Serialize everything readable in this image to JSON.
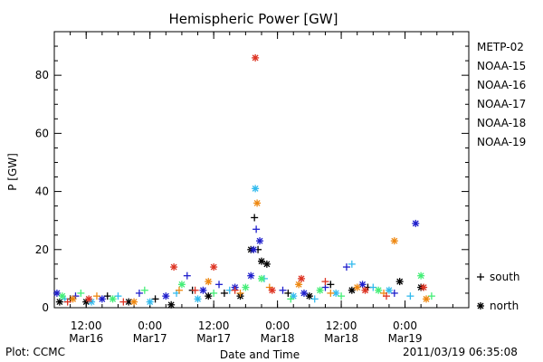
{
  "chart_data": {
    "type": "scatter",
    "title": "Hemispheric Power [GW]",
    "ylabel": "P [GW]",
    "xlabel": "Date and Time",
    "ylim": [
      0,
      95
    ],
    "yticks": [
      0,
      20,
      40,
      60,
      80
    ],
    "xlim": [
      "2011-03-16 06:00",
      "2011-03-19 12:00"
    ],
    "xticks": [
      {
        "time": "12:00",
        "date": "Mar16",
        "t": "2011-03-16 12:00"
      },
      {
        "time": "0:00",
        "date": "Mar17",
        "t": "2011-03-17 00:00"
      },
      {
        "time": "12:00",
        "date": "Mar17",
        "t": "2011-03-17 12:00"
      },
      {
        "time": "0:00",
        "date": "Mar18",
        "t": "2011-03-18 00:00"
      },
      {
        "time": "12:00",
        "date": "Mar18",
        "t": "2011-03-18 12:00"
      },
      {
        "time": "0:00",
        "date": "Mar19",
        "t": "2011-03-19 00:00"
      }
    ],
    "legend_position": "right",
    "marker_legend": [
      {
        "symbol": "+",
        "label": "south"
      },
      {
        "symbol": "*",
        "label": "north"
      }
    ],
    "series": [
      {
        "name": "METP-02",
        "color": "#000000",
        "points": [
          [
            "2011-03-16 07:00",
            2,
            "*"
          ],
          [
            "2011-03-16 09:00",
            3,
            "+"
          ],
          [
            "2011-03-16 12:00",
            2,
            "*"
          ],
          [
            "2011-03-16 16:00",
            4,
            "+"
          ],
          [
            "2011-03-16 20:00",
            2,
            "*"
          ],
          [
            "2011-03-17 01:00",
            3,
            "+"
          ],
          [
            "2011-03-17 04:00",
            1,
            "*"
          ],
          [
            "2011-03-17 08:00",
            6,
            "+"
          ],
          [
            "2011-03-17 11:00",
            4,
            "*"
          ],
          [
            "2011-03-17 14:00",
            5,
            "+"
          ],
          [
            "2011-03-17 17:00",
            4,
            "*"
          ],
          [
            "2011-03-17 19:00",
            20,
            "*"
          ],
          [
            "2011-03-17 19:40",
            31,
            "+"
          ],
          [
            "2011-03-17 20:20",
            20,
            "+"
          ],
          [
            "2011-03-17 21:00",
            16,
            "*"
          ],
          [
            "2011-03-17 22:00",
            15,
            "*"
          ],
          [
            "2011-03-18 02:00",
            5,
            "+"
          ],
          [
            "2011-03-18 06:00",
            4,
            "*"
          ],
          [
            "2011-03-18 10:00",
            8,
            "+"
          ],
          [
            "2011-03-18 14:00",
            6,
            "*"
          ],
          [
            "2011-03-18 17:00",
            7,
            "+"
          ],
          [
            "2011-03-18 23:00",
            9,
            "*"
          ],
          [
            "2011-03-19 03:00",
            7,
            "*"
          ]
        ]
      },
      {
        "name": "NOAA-15",
        "color": "#1f1fcc",
        "points": [
          [
            "2011-03-16 06:30",
            5,
            "*"
          ],
          [
            "2011-03-16 10:00",
            4,
            "+"
          ],
          [
            "2011-03-16 15:00",
            3,
            "*"
          ],
          [
            "2011-03-16 22:00",
            5,
            "+"
          ],
          [
            "2011-03-17 03:00",
            4,
            "*"
          ],
          [
            "2011-03-17 07:00",
            11,
            "+"
          ],
          [
            "2011-03-17 10:00",
            6,
            "*"
          ],
          [
            "2011-03-17 13:00",
            8,
            "+"
          ],
          [
            "2011-03-17 16:00",
            7,
            "*"
          ],
          [
            "2011-03-17 19:00",
            11,
            "*"
          ],
          [
            "2011-03-17 19:30",
            20,
            "*"
          ],
          [
            "2011-03-17 20:00",
            27,
            "+"
          ],
          [
            "2011-03-17 20:40",
            23,
            "*"
          ],
          [
            "2011-03-18 01:00",
            6,
            "+"
          ],
          [
            "2011-03-18 05:00",
            5,
            "*"
          ],
          [
            "2011-03-18 09:00",
            7,
            "+"
          ],
          [
            "2011-03-18 13:00",
            14,
            "+"
          ],
          [
            "2011-03-18 16:00",
            8,
            "*"
          ],
          [
            "2011-03-18 22:00",
            5,
            "+"
          ],
          [
            "2011-03-19 02:00",
            29,
            "*"
          ]
        ]
      },
      {
        "name": "NOAA-16",
        "color": "#33bbee",
        "points": [
          [
            "2011-03-16 08:00",
            3,
            "+"
          ],
          [
            "2011-03-16 13:00",
            2,
            "*"
          ],
          [
            "2011-03-16 18:00",
            4,
            "+"
          ],
          [
            "2011-03-17 00:00",
            2,
            "*"
          ],
          [
            "2011-03-17 05:00",
            5,
            "+"
          ],
          [
            "2011-03-17 09:00",
            3,
            "*"
          ],
          [
            "2011-03-17 15:00",
            6,
            "+"
          ],
          [
            "2011-03-17 19:50",
            41,
            "*"
          ],
          [
            "2011-03-17 21:30",
            10,
            "+"
          ],
          [
            "2011-03-18 03:00",
            4,
            "*"
          ],
          [
            "2011-03-18 07:00",
            3,
            "+"
          ],
          [
            "2011-03-18 11:00",
            5,
            "*"
          ],
          [
            "2011-03-18 14:00",
            15,
            "+"
          ],
          [
            "2011-03-18 18:00",
            7,
            "+"
          ],
          [
            "2011-03-18 21:00",
            6,
            "*"
          ],
          [
            "2011-03-19 01:00",
            4,
            "+"
          ]
        ]
      },
      {
        "name": "NOAA-17",
        "color": "#44ee77",
        "points": [
          [
            "2011-03-16 07:30",
            4,
            "*"
          ],
          [
            "2011-03-16 11:00",
            5,
            "+"
          ],
          [
            "2011-03-16 17:00",
            3,
            "*"
          ],
          [
            "2011-03-16 23:00",
            6,
            "+"
          ],
          [
            "2011-03-17 06:00",
            8,
            "*"
          ],
          [
            "2011-03-17 12:00",
            5,
            "+"
          ],
          [
            "2011-03-17 18:00",
            7,
            "*"
          ],
          [
            "2011-03-17 21:00",
            10,
            "*"
          ],
          [
            "2011-03-18 02:30",
            3,
            "+"
          ],
          [
            "2011-03-18 08:00",
            6,
            "*"
          ],
          [
            "2011-03-18 12:00",
            4,
            "+"
          ],
          [
            "2011-03-18 19:00",
            6,
            "*"
          ],
          [
            "2011-03-19 03:00",
            11,
            "*"
          ],
          [
            "2011-03-19 05:00",
            4,
            "+"
          ]
        ]
      },
      {
        "name": "NOAA-18",
        "color": "#ee8811",
        "points": [
          [
            "2011-03-16 09:30",
            3,
            "*"
          ],
          [
            "2011-03-16 14:00",
            4,
            "+"
          ],
          [
            "2011-03-16 21:00",
            2,
            "*"
          ],
          [
            "2011-03-17 05:30",
            6,
            "+"
          ],
          [
            "2011-03-17 11:00",
            9,
            "*"
          ],
          [
            "2011-03-17 17:00",
            5,
            "+"
          ],
          [
            "2011-03-17 20:10",
            36,
            "*"
          ],
          [
            "2011-03-17 22:30",
            7,
            "+"
          ],
          [
            "2011-03-18 04:00",
            8,
            "*"
          ],
          [
            "2011-03-18 10:00",
            5,
            "+"
          ],
          [
            "2011-03-18 15:00",
            7,
            "*"
          ],
          [
            "2011-03-18 20:00",
            5,
            "+"
          ],
          [
            "2011-03-18 22:00",
            23,
            "*"
          ],
          [
            "2011-03-19 04:00",
            3,
            "*"
          ]
        ]
      },
      {
        "name": "NOAA-19",
        "color": "#dd3322",
        "points": [
          [
            "2011-03-16 08:30",
            2,
            "+"
          ],
          [
            "2011-03-16 12:30",
            3,
            "*"
          ],
          [
            "2011-03-16 19:00",
            2,
            "+"
          ],
          [
            "2011-03-17 04:30",
            14,
            "*"
          ],
          [
            "2011-03-17 08:30",
            6,
            "+"
          ],
          [
            "2011-03-17 12:00",
            14,
            "*"
          ],
          [
            "2011-03-17 16:00",
            6,
            "+"
          ],
          [
            "2011-03-17 19:50",
            86,
            "*"
          ],
          [
            "2011-03-17 23:00",
            6,
            "*"
          ],
          [
            "2011-03-18 04:30",
            10,
            "*"
          ],
          [
            "2011-03-18 09:00",
            9,
            "+"
          ],
          [
            "2011-03-18 16:30",
            6,
            "*"
          ],
          [
            "2011-03-18 20:30",
            4,
            "+"
          ],
          [
            "2011-03-19 03:30",
            7,
            "*"
          ]
        ]
      }
    ]
  },
  "footer": {
    "plot_credit": "Plot: CCMC",
    "timestamp": "2011/03/19 06:35:08"
  }
}
